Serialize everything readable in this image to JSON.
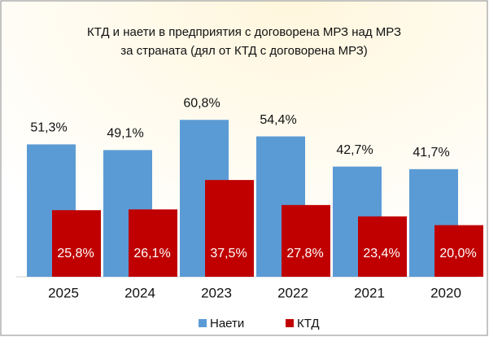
{
  "chart_data": {
    "type": "bar",
    "title": [
      "КТД и наети в предприятия с договорена МРЗ над МРЗ",
      "за страната (дял от КТД с договорена МРЗ)"
    ],
    "categories": [
      "2025",
      "2024",
      "2023",
      "2022",
      "2021",
      "2020"
    ],
    "series": [
      {
        "name": "Наети",
        "color": "#5b9bd5",
        "values": [
          51.3,
          49.1,
          60.8,
          54.4,
          42.7,
          41.7
        ],
        "value_labels": [
          "51,3%",
          "49,1%",
          "60,8%",
          "54,4%",
          "42,7%",
          "41,7%"
        ]
      },
      {
        "name": "КТД",
        "color": "#c00000",
        "values": [
          25.8,
          26.1,
          37.5,
          27.8,
          23.4,
          20.0
        ],
        "value_labels": [
          "25,8%",
          "26,1%",
          "37,5%",
          "27,8%",
          "23,4%",
          "20,0%"
        ]
      }
    ],
    "legend": "bottom"
  }
}
